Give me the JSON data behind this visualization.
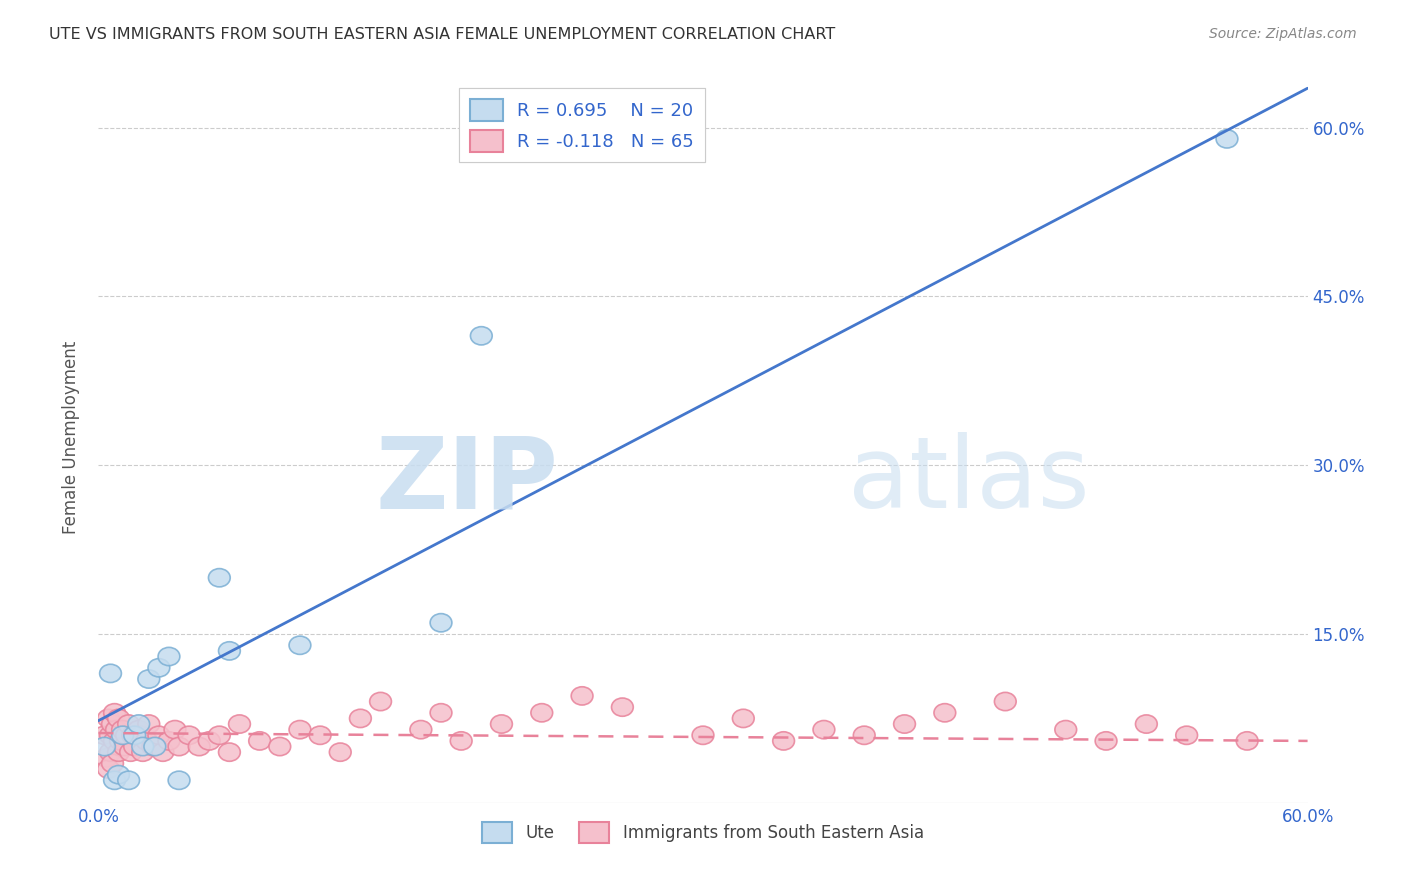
{
  "title": "UTE VS IMMIGRANTS FROM SOUTH EASTERN ASIA FEMALE UNEMPLOYMENT CORRELATION CHART",
  "source": "Source: ZipAtlas.com",
  "ylabel": "Female Unemployment",
  "yticks": [
    0.0,
    0.15,
    0.3,
    0.45,
    0.6
  ],
  "xlim": [
    0.0,
    0.6
  ],
  "ylim": [
    0.0,
    0.65
  ],
  "watermark_zip": "ZIP",
  "watermark_atlas": "atlas",
  "legend_label1": "Ute",
  "legend_label2": "Immigrants from South Eastern Asia",
  "blue_edge": "#7BAFD4",
  "blue_face": "#C5DCEF",
  "pink_edge": "#E8829A",
  "pink_face": "#F5C0CC",
  "blue_line_color": "#4477CC",
  "pink_line_color": "#E8829A",
  "background_color": "#FFFFFF",
  "grid_color": "#CCCCCC",
  "ute_x": [
    0.003,
    0.006,
    0.008,
    0.01,
    0.012,
    0.015,
    0.018,
    0.02,
    0.022,
    0.025,
    0.028,
    0.03,
    0.035,
    0.04,
    0.06,
    0.065,
    0.1,
    0.17,
    0.19,
    0.56
  ],
  "ute_y": [
    0.05,
    0.115,
    0.02,
    0.025,
    0.06,
    0.02,
    0.06,
    0.07,
    0.05,
    0.11,
    0.05,
    0.12,
    0.13,
    0.02,
    0.2,
    0.135,
    0.14,
    0.16,
    0.415,
    0.59
  ],
  "imm_x": [
    0.003,
    0.004,
    0.005,
    0.005,
    0.006,
    0.006,
    0.007,
    0.007,
    0.008,
    0.008,
    0.009,
    0.01,
    0.01,
    0.011,
    0.012,
    0.013,
    0.014,
    0.015,
    0.016,
    0.017,
    0.018,
    0.02,
    0.021,
    0.022,
    0.024,
    0.025,
    0.027,
    0.03,
    0.032,
    0.035,
    0.038,
    0.04,
    0.045,
    0.05,
    0.055,
    0.06,
    0.065,
    0.07,
    0.08,
    0.09,
    0.1,
    0.11,
    0.12,
    0.13,
    0.14,
    0.16,
    0.17,
    0.18,
    0.2,
    0.22,
    0.24,
    0.26,
    0.3,
    0.32,
    0.34,
    0.36,
    0.38,
    0.4,
    0.42,
    0.45,
    0.48,
    0.5,
    0.52,
    0.54,
    0.57
  ],
  "imm_y": [
    0.06,
    0.04,
    0.075,
    0.03,
    0.06,
    0.045,
    0.07,
    0.035,
    0.055,
    0.08,
    0.065,
    0.045,
    0.075,
    0.055,
    0.065,
    0.05,
    0.06,
    0.07,
    0.045,
    0.06,
    0.05,
    0.065,
    0.06,
    0.045,
    0.055,
    0.07,
    0.05,
    0.06,
    0.045,
    0.055,
    0.065,
    0.05,
    0.06,
    0.05,
    0.055,
    0.06,
    0.045,
    0.07,
    0.055,
    0.05,
    0.065,
    0.06,
    0.045,
    0.075,
    0.09,
    0.065,
    0.08,
    0.055,
    0.07,
    0.08,
    0.095,
    0.085,
    0.06,
    0.075,
    0.055,
    0.065,
    0.06,
    0.07,
    0.08,
    0.09,
    0.065,
    0.055,
    0.07,
    0.06,
    0.055
  ],
  "blue_line_x0": 0.0,
  "blue_line_y0": 0.073,
  "blue_line_x1": 0.6,
  "blue_line_y1": 0.635,
  "pink_line_x0": 0.0,
  "pink_line_y0": 0.062,
  "pink_line_x1": 0.6,
  "pink_line_y1": 0.055
}
